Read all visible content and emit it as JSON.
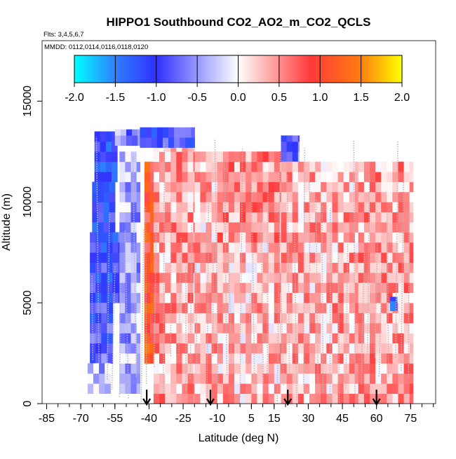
{
  "chart_data": {
    "type": "heatmap",
    "title": "HIPPO1 Southbound CO2_AO2_m_CO2_QCLS",
    "subtitle_flights": "Flts: 3,4,5,6,7",
    "subtitle_dates": "MMDD: 0112,0114,0116,0118,0120",
    "xlabel": "Latitude (deg N)",
    "ylabel": "Altitude (m)",
    "xlim": [
      -87,
      86
    ],
    "ylim": [
      0,
      18000
    ],
    "x_ticks": [
      -85,
      -70,
      -55,
      -40,
      -25,
      -10,
      5,
      15,
      30,
      45,
      60,
      75
    ],
    "x_tick_labels": [
      "-85",
      "-70",
      "-55",
      "-40",
      "-25",
      "-10",
      "5",
      "15",
      "30",
      "45",
      "60",
      "75"
    ],
    "y_ticks": [
      0,
      5000,
      10000,
      15000
    ],
    "y_tick_labels": [
      "0",
      "5000",
      "10000",
      "15000"
    ],
    "colorbar": {
      "range": [
        -2.0,
        2.0
      ],
      "ticks": [
        -2.0,
        -1.5,
        -1.0,
        -0.5,
        0.0,
        0.5,
        1.0,
        1.5,
        2.0
      ],
      "tick_labels": [
        "-2.0",
        "-1.5",
        "-1.0",
        "-0.5",
        "0.0",
        "0.5",
        "1.0",
        "1.5",
        "2.0"
      ],
      "colors": [
        "#00ffff",
        "#2f7fff",
        "#3030ff",
        "#ffffff",
        "#ff3a3a",
        "#ff7a10",
        "#ffff00"
      ]
    },
    "arrow_latitudes": [
      -41,
      -13,
      21,
      60
    ],
    "grid_cell": {
      "lat_width": 2.5,
      "alt_height": 500
    },
    "regions": [
      {
        "lat": [
          -64,
          -54
        ],
        "alt": [
          11000,
          13500
        ],
        "value": -1.2
      },
      {
        "lat": [
          -65,
          -55
        ],
        "alt": [
          8500,
          11000
        ],
        "value": -1.1
      },
      {
        "lat": [
          -66,
          -53
        ],
        "alt": [
          5000,
          8500
        ],
        "value": -1.0
      },
      {
        "lat": [
          -66,
          -56
        ],
        "alt": [
          2000,
          5000
        ],
        "value": -0.9
      },
      {
        "lat": [
          -67,
          -57
        ],
        "alt": [
          500,
          2000
        ],
        "value": -0.3
      },
      {
        "lat": [
          -55,
          -44
        ],
        "alt": [
          12800,
          13600
        ],
        "value": -0.6
      },
      {
        "lat": [
          -53,
          -44
        ],
        "alt": [
          500,
          12500
        ],
        "value": -0.4
      },
      {
        "lat": [
          -42,
          -38
        ],
        "alt": [
          2000,
          12000
        ],
        "value": 1.0
      },
      {
        "lat": [
          -33,
          -26
        ],
        "alt": [
          1000,
          9000
        ],
        "value": 0.8
      },
      {
        "lat": [
          -38,
          -20
        ],
        "alt": [
          0,
          13000
        ],
        "value": 0.4
      },
      {
        "lat": [
          -44,
          -20
        ],
        "alt": [
          12700,
          13700
        ],
        "value": -0.9
      },
      {
        "lat": [
          -20,
          18
        ],
        "alt": [
          0,
          12500
        ],
        "value": 0.3
      },
      {
        "lat": [
          -10,
          18
        ],
        "alt": [
          8000,
          12500
        ],
        "value": 0.5
      },
      {
        "lat": [
          18,
          26
        ],
        "alt": [
          12000,
          13300
        ],
        "value": -0.7
      },
      {
        "lat": [
          18,
          52
        ],
        "alt": [
          0,
          12000
        ],
        "value": 0.35
      },
      {
        "lat": [
          52,
          76
        ],
        "alt": [
          0,
          12000
        ],
        "value": 0.4
      },
      {
        "lat": [
          66,
          69
        ],
        "alt": [
          4600,
          5300
        ],
        "value": -1.2
      }
    ]
  }
}
